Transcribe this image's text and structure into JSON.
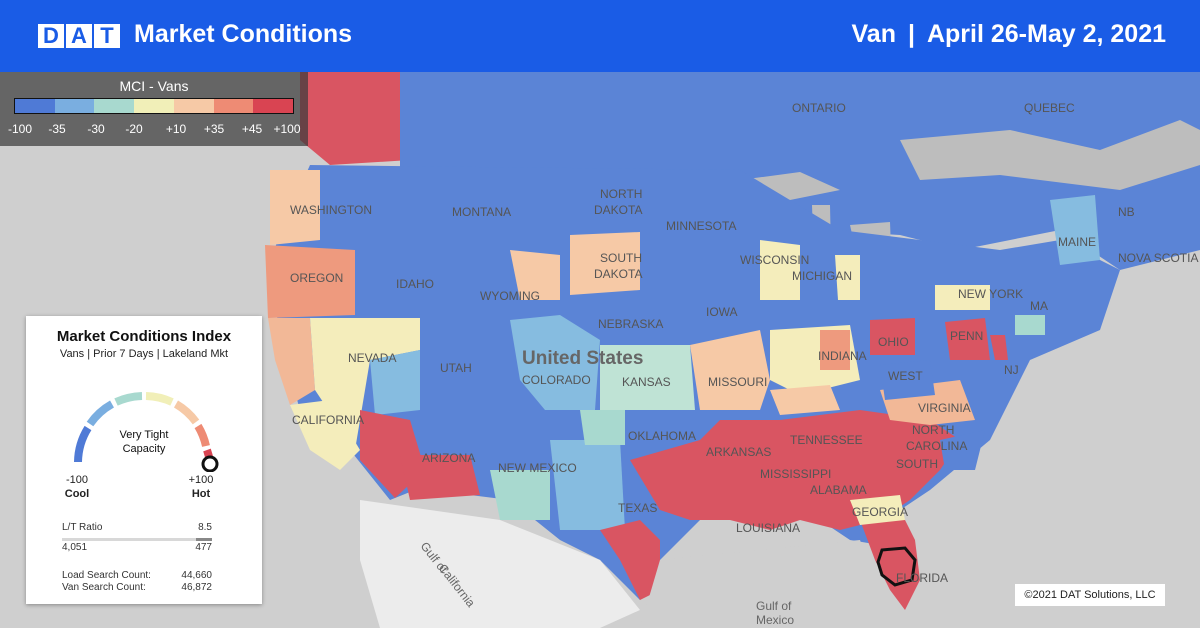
{
  "header": {
    "logo_letters": [
      "D",
      "A",
      "T"
    ],
    "title": "Market Conditions",
    "equipment": "Van",
    "separator": "|",
    "date_range": "April 26-May 2, 2021"
  },
  "legend": {
    "title": "MCI - Vans",
    "ticks": [
      "-100",
      "-35",
      "-30",
      "-20",
      "+10",
      "+35",
      "+45",
      "+100"
    ],
    "colors": [
      "#4f7ad6",
      "#7aaee0",
      "#a8d9cf",
      "#f1efb8",
      "#f6c9a6",
      "#ee8b74",
      "#d94452"
    ]
  },
  "card": {
    "title": "Market Conditions Index",
    "subtitle": "Vans | Prior 7 Days | Lakeland Mkt",
    "gauge_status_line1": "Very Tight",
    "gauge_status_line2": "Capacity",
    "gauge_value": 1.0,
    "gauge_min": "-100",
    "gauge_min_label": "Cool",
    "gauge_max": "+100",
    "gauge_max_label": "Hot",
    "lt_label": "L/T Ratio",
    "lt_value": "8.5",
    "loads": "4,051",
    "trucks": "477",
    "lt_fill": 0.11,
    "load_search_label": "Load Search Count:",
    "load_search_value": "44,660",
    "van_search_label": "Van Search Count:",
    "van_search_value": "46,872"
  },
  "map_labels": {
    "country": "United States",
    "ontario": "ONTARIO",
    "quebec": "QUEBEC",
    "nb": "NB",
    "nova_scotia": "NOVA SCOTIA",
    "washington": "WASHINGTON",
    "oregon": "OREGON",
    "idaho": "IDAHO",
    "montana": "MONTANA",
    "wyoming": "WYOMING",
    "north": "NORTH",
    "dakota_n": "DAKOTA",
    "south": "SOUTH",
    "dakota_s": "DAKOTA",
    "nebraska": "NEBRASKA",
    "nevada": "NEVADA",
    "utah": "UTAH",
    "colorado": "COLORADO",
    "kansas": "KANSAS",
    "california": "CALIFORNIA",
    "arizona": "ARIZONA",
    "new_mexico": "NEW MEXICO",
    "oklahoma": "OKLAHOMA",
    "texas": "TEXAS",
    "minnesota": "MINNESOTA",
    "iowa": "IOWA",
    "wisconsin": "WISCONSIN",
    "michigan": "MICHIGAN",
    "missouri": "MISSOURI",
    "arkansas": "ARKANSAS",
    "mississippi": "MISSISSIPPI",
    "louisiana": "LOUISIANA",
    "alabama": "ALABAMA",
    "georgia": "GEORGIA",
    "florida": "FLORIDA",
    "tennessee": "TENNESSEE",
    "north_c": "NORTH",
    "carolina": "CAROLINA",
    "south_c": "SOUTH",
    "virginia": "VIRGINIA",
    "west": "WEST",
    "indiana": "INDIANA",
    "ohio": "OHIO",
    "penn": "PENN",
    "new_york": "NEW YORK",
    "maine": "MAINE",
    "nj": "NJ",
    "ma": "MA",
    "gulf_ca_1": "Gulf of",
    "gulf_ca_2": "California",
    "gulf_mx_1": "Gulf of",
    "gulf_mx_2": "Mexico"
  },
  "copyright": "©2021 DAT Solutions, LLC"
}
